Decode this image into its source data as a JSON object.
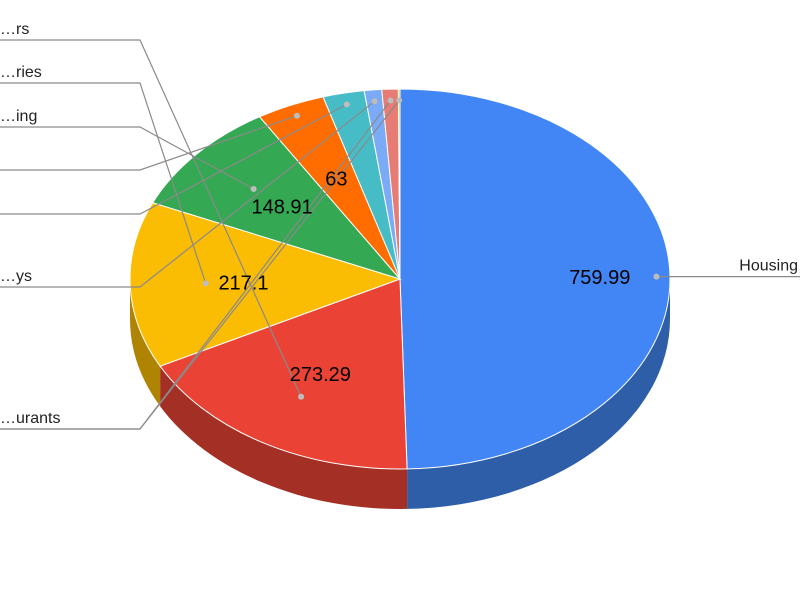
{
  "chart_data": {
    "type": "pie",
    "style": "3d",
    "slices": [
      {
        "label": "Housing",
        "value": 759.99,
        "color": "#4285F4",
        "side_color": "#2F5EA9"
      },
      {
        "label": "…rs",
        "value": 273.29,
        "color": "#EA4335",
        "side_color": "#A42F25"
      },
      {
        "label": "…ries",
        "value": 217.1,
        "color": "#FBBC04",
        "side_color": "#B08403"
      },
      {
        "label": "…ing",
        "value": 148.91,
        "color": "#34A853",
        "side_color": "#247639"
      },
      {
        "label": "",
        "value": 63,
        "color": "#FF6D01",
        "side_color": "#B34C01"
      },
      {
        "label": "",
        "value": 38,
        "color": "#46BDC6",
        "side_color": "#31848B"
      },
      {
        "label": "…ys",
        "value": 16,
        "color": "#7BAAF7",
        "side_color": "#5677AD"
      },
      {
        "label": "…urants",
        "value": 15,
        "color": "#E67C73",
        "side_color": "#A15751"
      },
      {
        "label": "",
        "value": 1.5,
        "color": "#F4B400",
        "side_color": "#AB7E00"
      }
    ],
    "legend": "none",
    "labels": "leader-lines-left-and-right"
  }
}
